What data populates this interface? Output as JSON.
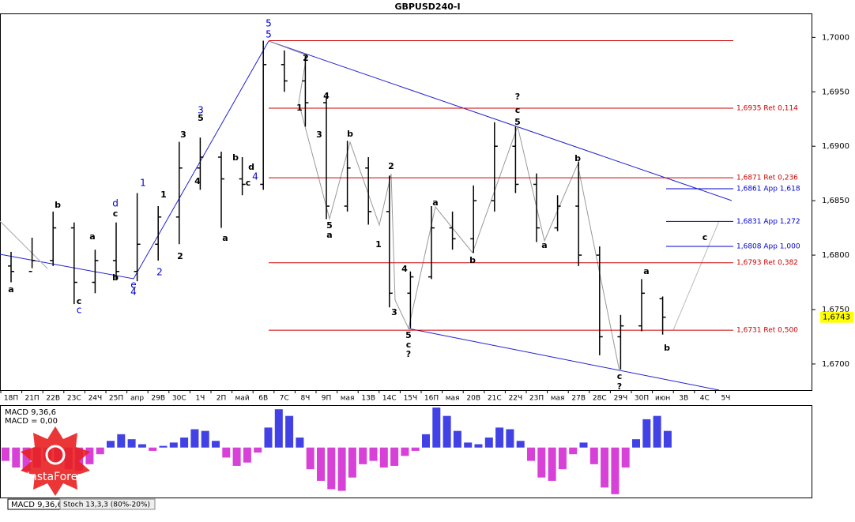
{
  "chart_data": [
    {
      "type": "ohlc",
      "title": "GBPUSD240-I",
      "color": "#000000",
      "categories": [
        "18П",
        "21П",
        "22В",
        "23С",
        "24Ч",
        "25П",
        "апр",
        "29В",
        "30С",
        "1Ч",
        "2П",
        "май",
        "6В",
        "7С",
        "8Ч",
        "9П",
        "мая",
        "13В",
        "14С",
        "15Ч",
        "16П",
        "мая",
        "20В",
        "21С",
        "22Ч",
        "23П",
        "мая",
        "27В",
        "28С",
        "29Ч",
        "30П",
        "июн",
        "3В",
        "4С",
        "5Ч"
      ],
      "open": [
        1.679,
        1.6785,
        1.6795,
        1.6825,
        1.6775,
        1.6795,
        1.6785,
        1.681,
        1.6835,
        1.688,
        1.689,
        1.687,
        1.6865,
        1.6975,
        1.696,
        1.694,
        1.6845,
        1.688,
        1.684,
        1.6765,
        1.678,
        1.6825,
        1.6815,
        1.685,
        1.69,
        1.6865,
        1.6825,
        1.6845,
        1.68,
        1.6725,
        1.6735,
        1.676,
        null,
        null,
        null
      ],
      "high": [
        1.6803,
        1.6816,
        1.684,
        1.683,
        1.6805,
        1.683,
        1.6857,
        1.6845,
        1.6904,
        1.6908,
        1.6895,
        1.689,
        1.6997,
        1.6988,
        1.6983,
        1.6945,
        1.6905,
        1.689,
        1.6873,
        1.6785,
        1.6845,
        1.684,
        1.6864,
        1.6922,
        1.6918,
        1.6875,
        1.6855,
        1.6886,
        1.6808,
        1.6745,
        1.6778,
        1.6762,
        null,
        null,
        null
      ],
      "low": [
        1.6775,
        1.6788,
        1.679,
        1.6755,
        1.6765,
        1.6778,
        1.6776,
        1.6795,
        1.681,
        1.686,
        1.6825,
        1.6855,
        1.686,
        1.695,
        1.6918,
        1.6833,
        1.684,
        1.6828,
        1.6752,
        1.6733,
        1.6778,
        1.6805,
        1.6802,
        1.684,
        1.6857,
        1.6812,
        1.6822,
        1.679,
        1.6708,
        1.6695,
        1.673,
        1.6727,
        null,
        null,
        null
      ],
      "close": [
        1.6785,
        1.6795,
        1.6825,
        1.6775,
        1.6795,
        1.6785,
        1.681,
        1.6835,
        1.688,
        1.689,
        1.687,
        1.6865,
        1.6975,
        1.696,
        1.694,
        1.6845,
        1.688,
        1.684,
        1.6765,
        1.678,
        1.6825,
        1.6815,
        1.685,
        1.69,
        1.6865,
        1.6825,
        1.6845,
        1.68,
        1.6725,
        1.6735,
        1.6765,
        1.6743,
        null,
        null,
        null
      ],
      "ylim": [
        1.6676,
        1.7022
      ],
      "yticks": [
        {
          "value": 1.67,
          "label": "1,6700"
        },
        {
          "value": 1.675,
          "label": "1,6750"
        },
        {
          "value": 1.68,
          "label": "1,6800"
        },
        {
          "value": 1.685,
          "label": "1,6850"
        },
        {
          "value": 1.69,
          "label": "1,6900"
        },
        {
          "value": 1.695,
          "label": "1,6950"
        },
        {
          "value": 1.7,
          "label": "1,7000"
        }
      ],
      "last_price": {
        "value": 1.6743,
        "label": "1,6743"
      },
      "levels": [
        {
          "value": 1.6997,
          "color": "#cc0000"
        },
        {
          "value": 1.6935,
          "label": "1,6935 Ret 0,114",
          "color": "#cc0000"
        },
        {
          "value": 1.6871,
          "label": "1,6871 Ret 0,236",
          "color": "#cc0000"
        },
        {
          "value": 1.6861,
          "label": "1,6861 App 1,618",
          "color": "#0000cc"
        },
        {
          "value": 1.6831,
          "label": "1,6831 App 1,272",
          "color": "#0000cc"
        },
        {
          "value": 1.6808,
          "label": "1,6808 App 1,000",
          "color": "#0000cc"
        },
        {
          "value": 1.6793,
          "label": "1,6793 Ret 0,382",
          "color": "#cc0000"
        },
        {
          "value": 1.6731,
          "label": "1,6731 Ret 0,500",
          "color": "#cc0000"
        }
      ],
      "annotations": [
        {
          "text": "5",
          "color": "#0000cc"
        },
        {
          "text": "5",
          "color": "#0000cc"
        },
        {
          "text": "3",
          "color": "#0000cc"
        },
        {
          "text": "d",
          "color": "#0000cc"
        },
        {
          "text": "1",
          "color": "#0000cc"
        },
        {
          "text": "e",
          "color": "#0000cc"
        },
        {
          "text": "4",
          "color": "#0000cc"
        },
        {
          "text": "2",
          "color": "#0000cc"
        },
        {
          "text": "c",
          "color": "#0000cc"
        },
        {
          "text": "4",
          "color": "#0000cc"
        },
        {
          "text": "a",
          "color": "#000000"
        },
        {
          "text": "b",
          "color": "#000000"
        },
        {
          "text": "c",
          "color": "#000000"
        },
        {
          "text": "a",
          "color": "#000000"
        },
        {
          "text": "c",
          "color": "#000000"
        },
        {
          "text": "b",
          "color": "#000000"
        },
        {
          "text": "1",
          "color": "#000000"
        },
        {
          "text": "2",
          "color": "#000000"
        },
        {
          "text": "3",
          "color": "#000000"
        },
        {
          "text": "5",
          "color": "#000000"
        },
        {
          "text": "4",
          "color": "#000000"
        },
        {
          "text": "a",
          "color": "#000000"
        },
        {
          "text": "b",
          "color": "#000000"
        },
        {
          "text": "c",
          "color": "#000000"
        },
        {
          "text": "d",
          "color": "#000000"
        },
        {
          "text": "2",
          "color": "#000000"
        },
        {
          "text": "1",
          "color": "#000000"
        },
        {
          "text": "3",
          "color": "#000000"
        },
        {
          "text": "4",
          "color": "#000000"
        },
        {
          "text": "5",
          "color": "#000000"
        },
        {
          "text": "a",
          "color": "#000000"
        },
        {
          "text": "b",
          "color": "#000000"
        },
        {
          "text": "1",
          "color": "#000000"
        },
        {
          "text": "2",
          "color": "#000000"
        },
        {
          "text": "3",
          "color": "#000000"
        },
        {
          "text": "4",
          "color": "#000000"
        },
        {
          "text": "5",
          "color": "#000000"
        },
        {
          "text": "c",
          "color": "#000000"
        },
        {
          "text": "?",
          "color": "#000000"
        },
        {
          "text": "a",
          "color": "#000000"
        },
        {
          "text": "b",
          "color": "#000000"
        },
        {
          "text": "?",
          "color": "#000000"
        },
        {
          "text": "c",
          "color": "#000000"
        },
        {
          "text": "5",
          "color": "#000000"
        },
        {
          "text": "b",
          "color": "#000000"
        },
        {
          "text": "a",
          "color": "#000000"
        },
        {
          "text": "a",
          "color": "#000000"
        },
        {
          "text": "b",
          "color": "#000000"
        },
        {
          "text": "c",
          "color": "#000000"
        },
        {
          "text": "c",
          "color": "#000000"
        },
        {
          "text": "?",
          "color": "#000000"
        }
      ]
    },
    {
      "type": "bar",
      "title": "MACD 9,36,6",
      "subtitle": "MACD = 0,00",
      "color": "#2020e0",
      "negative_color": "#d020d0",
      "ylim": [
        -0.003,
        0.0025
      ],
      "values": [
        -0.0008,
        -0.0012,
        -0.0014,
        -0.0012,
        -0.0008,
        -0.001,
        -0.0013,
        -0.0014,
        -0.001,
        -0.0004,
        0.0004,
        0.0008,
        0.0005,
        0.0002,
        -0.0002,
        0.0001,
        0.0003,
        0.0006,
        0.0011,
        0.001,
        0.0004,
        -0.0006,
        -0.0011,
        -0.0009,
        -0.0003,
        0.0012,
        0.0023,
        0.0019,
        0.0006,
        -0.0013,
        -0.002,
        -0.0025,
        -0.0026,
        -0.0018,
        -0.001,
        -0.0008,
        -0.0012,
        -0.0011,
        -0.0005,
        -0.0002,
        0.0008,
        0.0024,
        0.0019,
        0.001,
        0.0003,
        0.0002,
        0.0006,
        0.0012,
        0.0011,
        0.0004,
        -0.0008,
        -0.0018,
        -0.002,
        -0.0013,
        -0.0004,
        0.0003,
        -0.001,
        -0.0024,
        -0.0028,
        -0.0012,
        0.0005,
        0.0017,
        0.0019,
        0.001
      ]
    }
  ],
  "tabs": [
    "MACD 9,36,6",
    "Stoch 13,3,3 (80%-20%)"
  ],
  "brand": "InstaForex"
}
